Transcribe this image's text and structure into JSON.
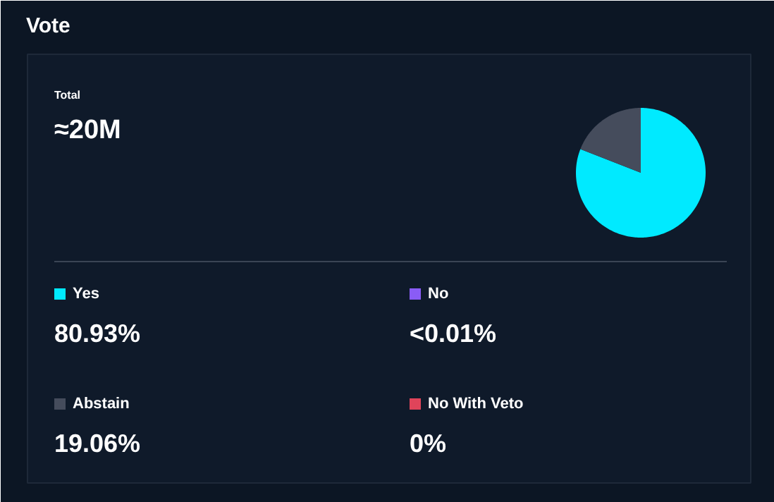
{
  "chart_data": {
    "type": "pie",
    "title": "Vote",
    "annotations": [
      "Total",
      "≈20M"
    ],
    "categories": [
      "Yes",
      "No",
      "Abstain",
      "No With Veto"
    ],
    "values": [
      80.93,
      0,
      19.06,
      0
    ],
    "value_labels": [
      "80.93%",
      "<0.01%",
      "19.06%",
      "0%"
    ],
    "colors": [
      "#00eaff",
      "#8a5cf6",
      "#454c5c",
      "#e0445a"
    ],
    "legend": "bottom"
  }
}
